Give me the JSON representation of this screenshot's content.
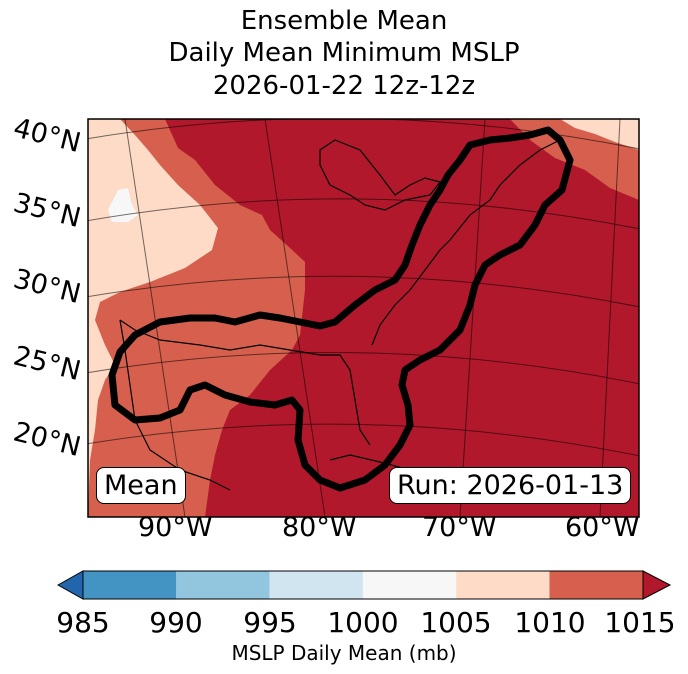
{
  "title": {
    "line1": "Ensemble Mean",
    "line2": "Daily Mean Minimum MSLP",
    "line3": "2026-01-22 12z-12z"
  },
  "map": {
    "lat_labels": [
      "40°N",
      "35°N",
      "30°N",
      "25°N",
      "20°N"
    ],
    "lon_labels": [
      "90°W",
      "80°W",
      "70°W",
      "60°W"
    ],
    "mean_label": "Mean",
    "run_label": "Run: 2026-01-13",
    "field_colors": {
      "1000-1005": "#f7f7f7",
      "1005-1010": "#fddbc7",
      "1010-1015": "#d6604d",
      "over-1015": "#b2182b"
    },
    "contour_color": "#000000"
  },
  "colorbar": {
    "ticks": [
      "985",
      "990",
      "995",
      "1000",
      "1005",
      "1010",
      "1015"
    ],
    "colors": [
      "#2166ac",
      "#4393c3",
      "#92c5de",
      "#d1e5f0",
      "#f7f7f7",
      "#fddbc7",
      "#d6604d",
      "#b2182b"
    ],
    "label": "MSLP Daily Mean (mb)"
  }
}
